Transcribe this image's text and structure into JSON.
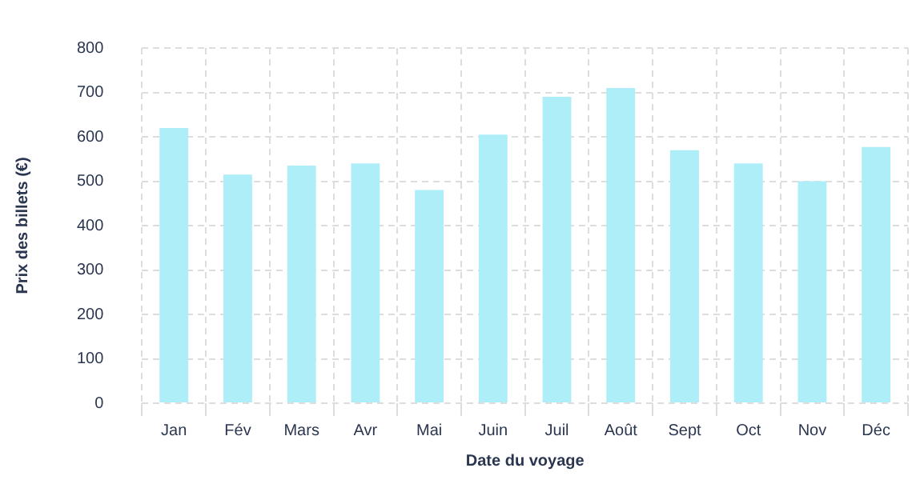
{
  "chart_data": {
    "type": "bar",
    "xlabel": "Date du voyage",
    "ylabel": "Prix des billets (€)",
    "categories": [
      "Jan",
      "Fév",
      "Mars",
      "Avr",
      "Mai",
      "Juin",
      "Juil",
      "Août",
      "Sept",
      "Oct",
      "Nov",
      "Déc"
    ],
    "values": [
      620,
      515,
      535,
      540,
      480,
      605,
      690,
      710,
      570,
      540,
      500,
      577
    ],
    "color": "#aeeef8",
    "ylim": [
      0,
      800
    ],
    "yticks": [
      0,
      100,
      200,
      300,
      400,
      500,
      600,
      700,
      800
    ],
    "grid": true,
    "legend": false
  }
}
